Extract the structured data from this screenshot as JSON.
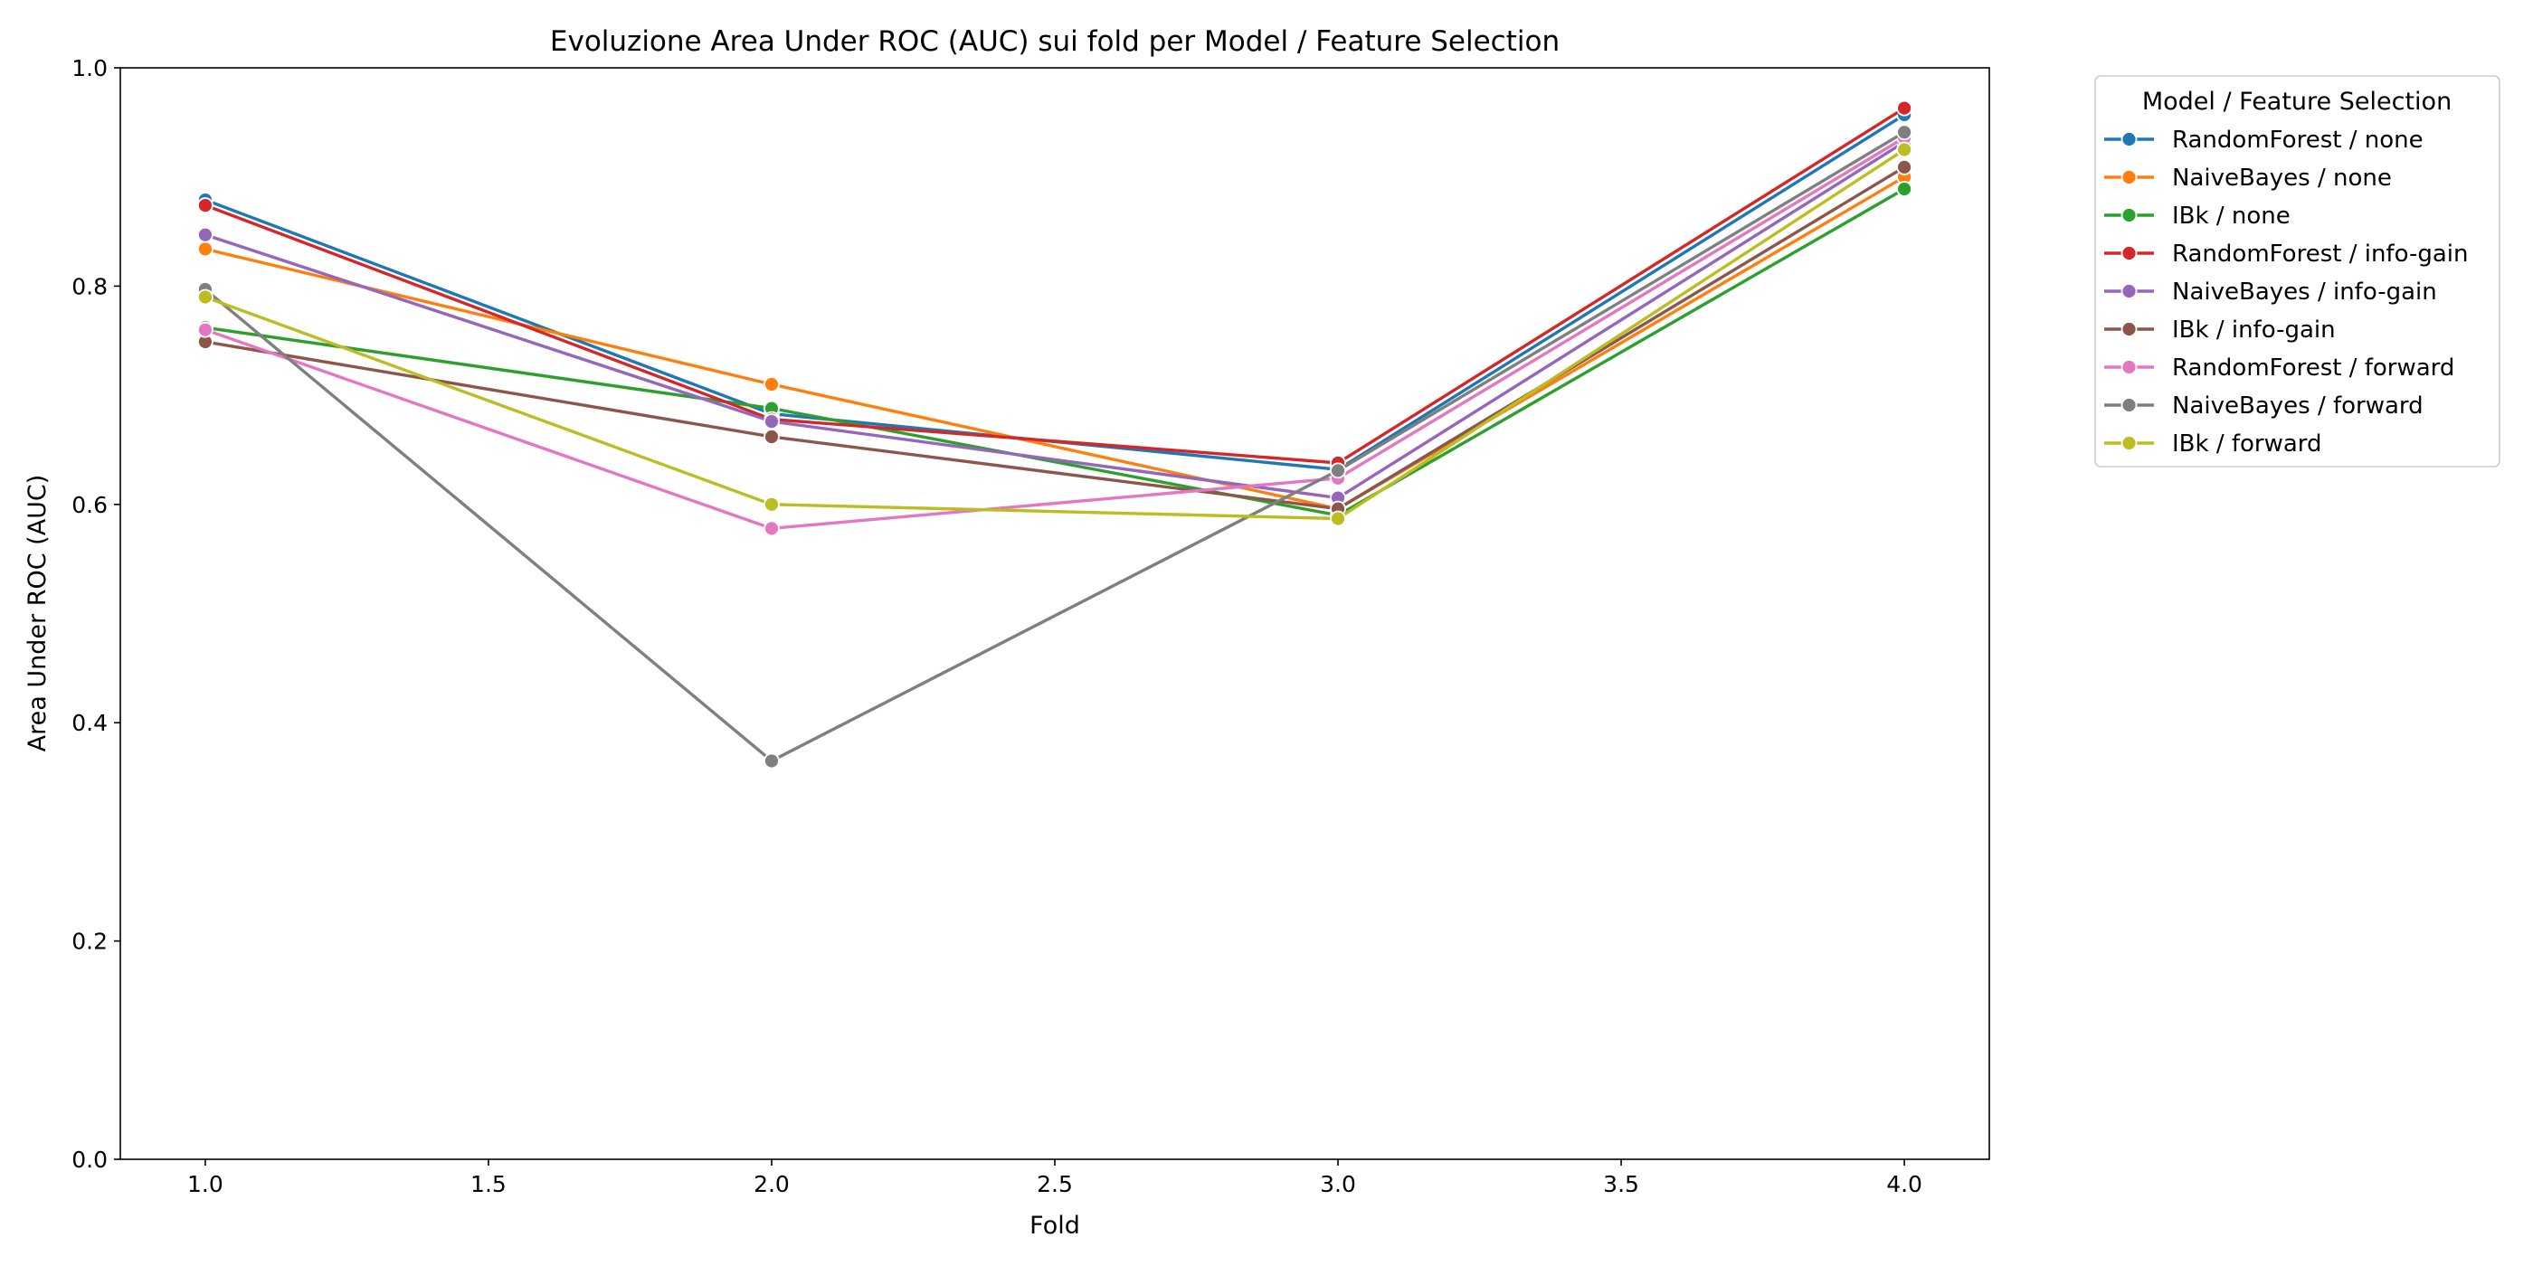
{
  "chart_data": {
    "type": "line",
    "title": "Evoluzione Area Under ROC (AUC) sui fold per Model / Feature Selection",
    "xlabel": "Fold",
    "ylabel": "Area Under ROC (AUC)",
    "xlim": [
      0.85,
      4.15
    ],
    "ylim": [
      0.0,
      1.0
    ],
    "x_ticks": [
      1.0,
      1.5,
      2.0,
      2.5,
      3.0,
      3.5,
      4.0
    ],
    "x_tick_labels": [
      "1.0",
      "1.5",
      "2.0",
      "2.5",
      "3.0",
      "3.5",
      "4.0"
    ],
    "y_ticks": [
      0.0,
      0.2,
      0.4,
      0.6,
      0.8,
      1.0
    ],
    "y_tick_labels": [
      "0.0",
      "0.2",
      "0.4",
      "0.6",
      "0.8",
      "1.0"
    ],
    "grid": false,
    "legend_title": "Model / Feature Selection",
    "legend_position": "outside-right-top",
    "x": [
      1.0,
      2.0,
      3.0,
      4.0
    ],
    "series": [
      {
        "name": "RandomForest / none",
        "color": "#1f77b4",
        "values": [
          0.879,
          0.683,
          0.632,
          0.957
        ]
      },
      {
        "name": "NaiveBayes / none",
        "color": "#ff7f0e",
        "values": [
          0.834,
          0.71,
          0.596,
          0.9
        ]
      },
      {
        "name": "IBk / none",
        "color": "#2ca02c",
        "values": [
          0.762,
          0.688,
          0.59,
          0.889
        ]
      },
      {
        "name": "RandomForest / info-gain",
        "color": "#d62728",
        "values": [
          0.874,
          0.678,
          0.638,
          0.963
        ]
      },
      {
        "name": "NaiveBayes / info-gain",
        "color": "#9467bd",
        "values": [
          0.847,
          0.676,
          0.606,
          0.932
        ]
      },
      {
        "name": "IBk / info-gain",
        "color": "#8c564b",
        "values": [
          0.749,
          0.662,
          0.596,
          0.909
        ]
      },
      {
        "name": "RandomForest / forward",
        "color": "#e377c2",
        "values": [
          0.76,
          0.578,
          0.624,
          0.936
        ]
      },
      {
        "name": "NaiveBayes / forward",
        "color": "#7f7f7f",
        "values": [
          0.797,
          0.365,
          0.631,
          0.941
        ]
      },
      {
        "name": "IBk / forward",
        "color": "#bcbd22",
        "values": [
          0.79,
          0.6,
          0.587,
          0.925
        ]
      }
    ]
  }
}
